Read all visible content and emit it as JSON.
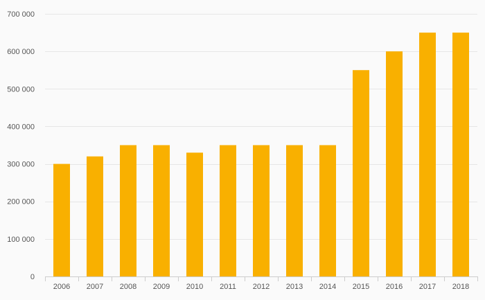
{
  "chart_data": {
    "type": "bar",
    "categories": [
      "2006",
      "2007",
      "2008",
      "2009",
      "2010",
      "2011",
      "2012",
      "2013",
      "2014",
      "2015",
      "2016",
      "2017",
      "2018"
    ],
    "values": [
      300000,
      320000,
      350000,
      350000,
      330000,
      350000,
      350000,
      350000,
      350000,
      550000,
      600000,
      650000,
      650000
    ],
    "ylim": [
      0,
      700000
    ],
    "yticks": [
      0,
      100000,
      200000,
      300000,
      400000,
      500000,
      600000,
      700000
    ],
    "ytick_labels": [
      "0",
      "100 000",
      "200 000",
      "300 000",
      "400 000",
      "500 000",
      "600 000",
      "700 000"
    ],
    "grid": true,
    "bar_color": "#f9b000",
    "grid_color": "#e6e6e6",
    "background": "#fafafa"
  }
}
